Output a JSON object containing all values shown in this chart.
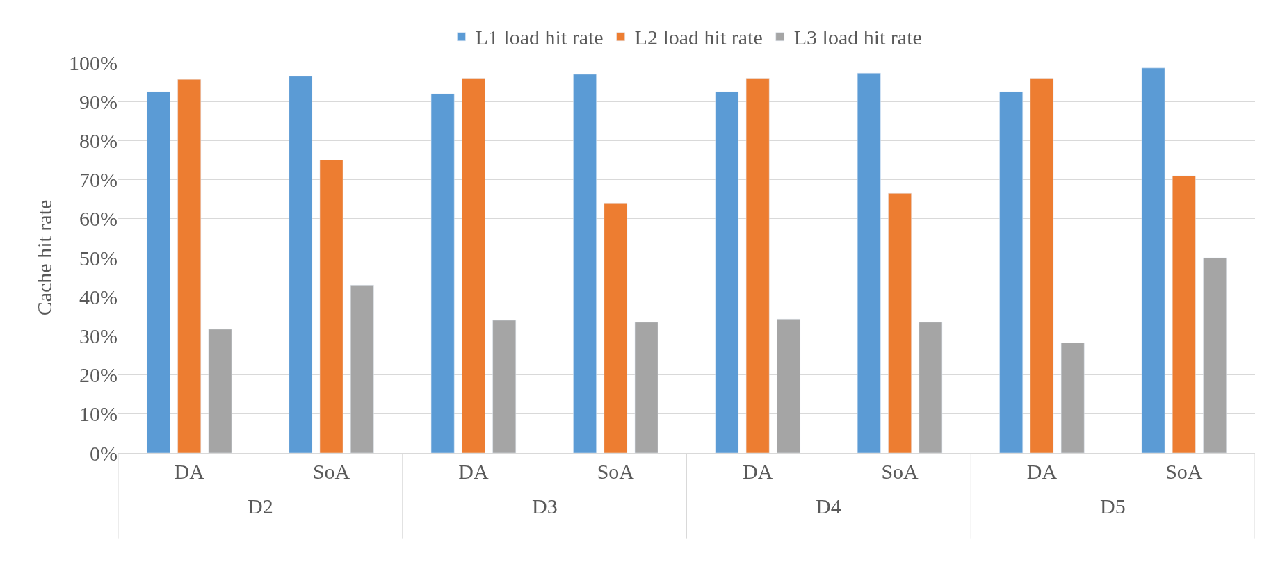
{
  "chart_data": {
    "type": "bar",
    "ylabel": "Cache hit rate",
    "categories": [
      "DA",
      "SoA",
      "DA",
      "SoA",
      "DA",
      "SoA",
      "DA",
      "SoA"
    ],
    "annotations": [
      "D2",
      "D3",
      "D4",
      "D5"
    ],
    "series": [
      {
        "name": "L1 load hit rate",
        "color": "#5b9bd5",
        "values": [
          92.5,
          96.5,
          92,
          97,
          92.5,
          97.3,
          92.5,
          98.6
        ]
      },
      {
        "name": "L2 load hit rate",
        "color": "#ed7d31",
        "values": [
          95.7,
          75,
          96,
          64,
          96,
          66.5,
          96,
          71
        ]
      },
      {
        "name": "L3 load hit rate",
        "color": "#a5a5a5",
        "values": [
          31.7,
          43,
          34,
          33.5,
          34.3,
          33.5,
          28.2,
          50
        ]
      }
    ],
    "ylim": [
      0,
      100
    ],
    "yticks": [
      {
        "value": 0,
        "label": "0%"
      },
      {
        "value": 10,
        "label": "10%"
      },
      {
        "value": 20,
        "label": "20%"
      },
      {
        "value": 30,
        "label": "30%"
      },
      {
        "value": 40,
        "label": "40%"
      },
      {
        "value": 50,
        "label": "50%"
      },
      {
        "value": 60,
        "label": "60%"
      },
      {
        "value": 70,
        "label": "70%"
      },
      {
        "value": 80,
        "label": "80%"
      },
      {
        "value": 90,
        "label": "90%"
      },
      {
        "value": 100,
        "label": "100%"
      }
    ],
    "grid": "y",
    "legend": "top"
  }
}
